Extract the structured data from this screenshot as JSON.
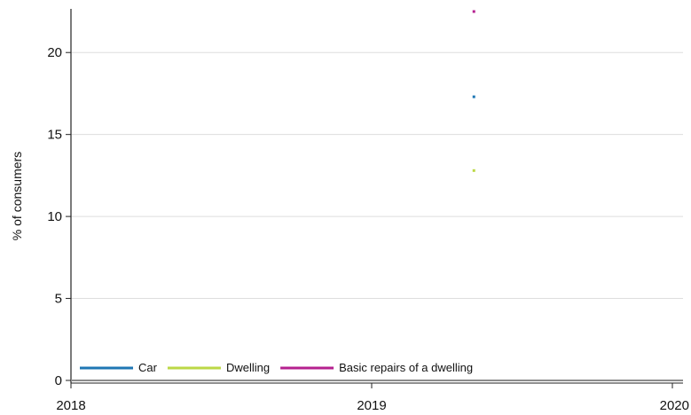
{
  "chart_data": {
    "type": "scatter",
    "title": "",
    "xlabel": "",
    "ylabel": "% of consumers",
    "xlim": [
      2018,
      2020
    ],
    "ylim": [
      0,
      22.5
    ],
    "x_ticks": [
      "2018",
      "2019",
      "2020"
    ],
    "y_ticks": [
      "0",
      "5",
      "10",
      "15",
      "20"
    ],
    "grid": "horizontal",
    "legend_position": "bottom-left inside",
    "series": [
      {
        "name": "Car",
        "color": "#1f77b4",
        "points": [
          {
            "x": 2019.34,
            "y": 17.3
          }
        ]
      },
      {
        "name": "Dwelling",
        "color": "#bcd846",
        "points": [
          {
            "x": 2019.34,
            "y": 12.8
          }
        ]
      },
      {
        "name": "Basic repairs of a dwelling",
        "color": "#b5208f",
        "points": [
          {
            "x": 2019.34,
            "y": 22.5
          }
        ]
      }
    ]
  }
}
